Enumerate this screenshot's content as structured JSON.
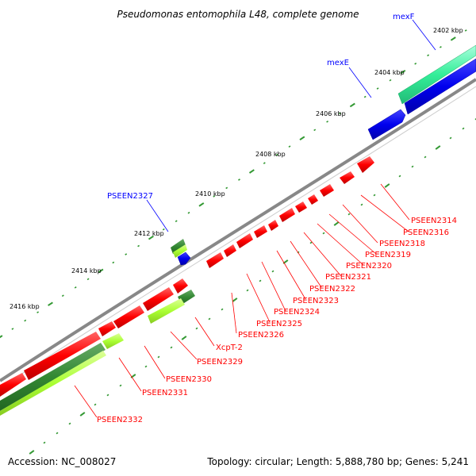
{
  "map": {
    "title": "Pseudomonas entomophila L48, complete genome",
    "accession": "Accession: NC_008027",
    "stats": "Topology: circular; Length: 5,888,780 bp; Genes: 5,241"
  },
  "kbp_ticks": [
    "2402 kbp",
    "2404 kbp",
    "2406 kbp",
    "2408 kbp",
    "2410 kbp",
    "2412 kbp",
    "2414 kbp",
    "2416 kbp"
  ],
  "gene_labels": {
    "mexF": "mexF",
    "mexE": "mexE",
    "PSEEN2327": "PSEEN2327",
    "PSEEN2314": "PSEEN2314",
    "PSEEN2316": "PSEEN2316",
    "PSEEN2318": "PSEEN2318",
    "PSEEN2319": "PSEEN2319",
    "PSEEN2320": "PSEEN2320",
    "PSEEN2321": "PSEEN2321",
    "PSEEN2322": "PSEEN2322",
    "PSEEN2323": "PSEEN2323",
    "PSEEN2324": "PSEEN2324",
    "PSEEN2325": "PSEEN2325",
    "PSEEN2326": "PSEEN2326",
    "XcpT2": "XcpT-2",
    "PSEEN2329": "PSEEN2329",
    "PSEEN2330": "PSEEN2330",
    "PSEEN2331": "PSEEN2331",
    "PSEEN2332": "PSEEN2332"
  },
  "colors": {
    "cds_red": "#ff0000",
    "cds_blue": "#0000ee",
    "cds_teal": "#33ee99",
    "cds_lightgreen": "#aaff33",
    "cds_darkgreen": "#338833",
    "backbone": "#888888",
    "tick": "#339933",
    "leader_red": "#ff0000",
    "leader_blue": "#0000ff"
  }
}
